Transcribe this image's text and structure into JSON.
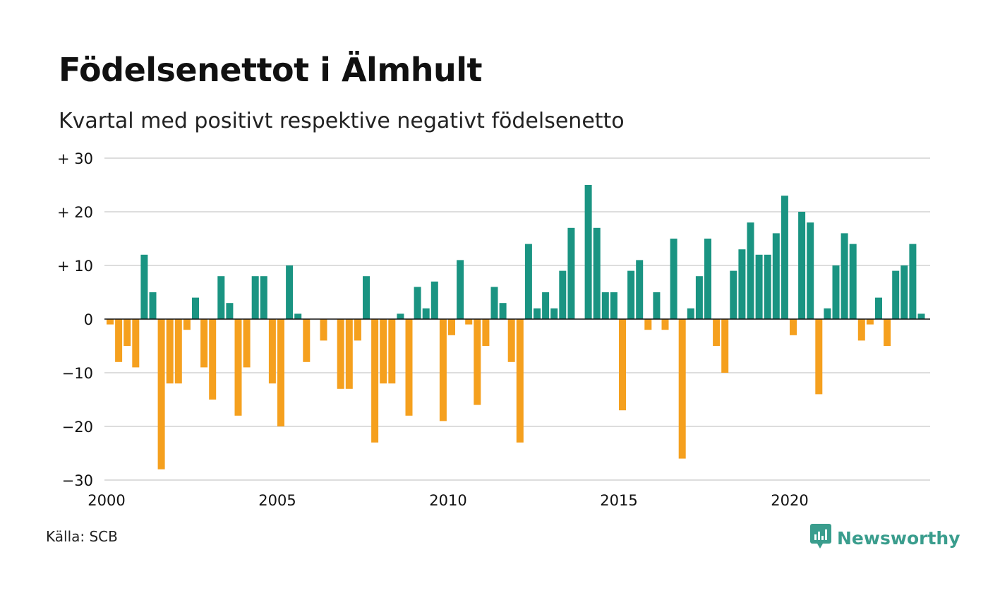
{
  "title": "Födelsenettot i Älmhult",
  "subtitle": "Kvartal med positivt respektive negativt födelsenetto",
  "source": "Källa: SCB",
  "brand": {
    "name": "Newsworthy",
    "icon": "newsworthy-logo-icon",
    "color": "#3a9d8d"
  },
  "colors": {
    "positive": "#1a9482",
    "negative": "#f5a01e",
    "grid": "#dddddd",
    "zero": "#111111"
  },
  "chart_data": {
    "type": "bar",
    "title": "Födelsenettot i Älmhult",
    "subtitle": "Kvartal med positivt respektive negativt födelsenetto",
    "x_start": 2000.0,
    "x_step": 0.25,
    "xlim": [
      2000.0,
      2024.0
    ],
    "ylim": [
      -30,
      30
    ],
    "x_ticks": [
      {
        "value": 2000,
        "label": "2000"
      },
      {
        "value": 2005,
        "label": "2005"
      },
      {
        "value": 2010,
        "label": "2010"
      },
      {
        "value": 2015,
        "label": "2015"
      },
      {
        "value": 2020,
        "label": "2020"
      }
    ],
    "y_ticks": [
      {
        "value": 30,
        "label": "+ 30"
      },
      {
        "value": 20,
        "label": "+ 20"
      },
      {
        "value": 10,
        "label": "+ 10"
      },
      {
        "value": 0,
        "label": "0"
      },
      {
        "value": -10,
        "label": "−10"
      },
      {
        "value": -20,
        "label": "−20"
      },
      {
        "value": -30,
        "label": "−30"
      }
    ],
    "grid": true,
    "values": [
      -1,
      -8,
      -5,
      -9,
      12,
      5,
      -28,
      -12,
      -12,
      -2,
      4,
      -9,
      -15,
      8,
      3,
      -18,
      -9,
      8,
      8,
      -12,
      -20,
      10,
      1,
      -8,
      0,
      -4,
      0,
      -13,
      -13,
      -4,
      8,
      -23,
      -12,
      -12,
      1,
      -18,
      6,
      2,
      7,
      -19,
      -3,
      11,
      -1,
      -16,
      -5,
      6,
      3,
      -8,
      -23,
      14,
      2,
      5,
      2,
      9,
      17,
      0,
      25,
      17,
      5,
      5,
      -17,
      9,
      11,
      -2,
      5,
      -2,
      15,
      -26,
      2,
      8,
      15,
      -5,
      -10,
      9,
      13,
      18,
      12,
      12,
      16,
      23,
      -3,
      20,
      18,
      -14,
      2,
      10,
      16,
      14,
      -4,
      -1,
      4,
      -5,
      9,
      10,
      14,
      1
    ]
  }
}
